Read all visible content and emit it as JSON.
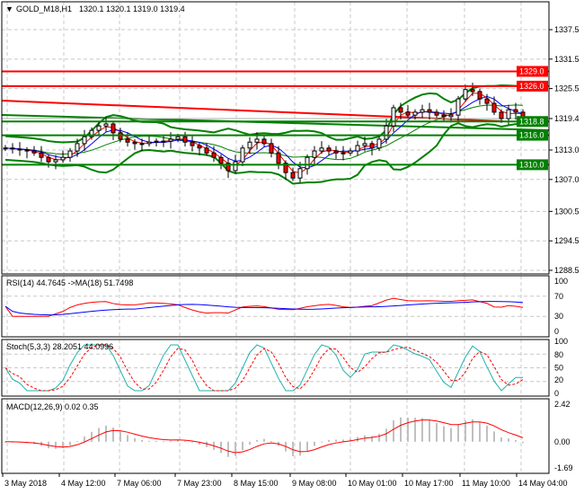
{
  "header": {
    "symbol": "GOLD_M18,H1",
    "ohlc": "1320.1 1320.1 1319.0 1319.4",
    "menu_icon": "triangle-down-icon"
  },
  "colors": {
    "bull": "#000000",
    "bear": "#ff0000",
    "support": "#008000",
    "resistance": "#ff0000",
    "rsi": "#ff0000",
    "rsi_ma": "#0000ff",
    "stoch_main": "#20b2aa",
    "stoch_signal": "#ff0000",
    "macd_hist": "#c0c0c0",
    "macd_signal": "#ff0000"
  },
  "chart_data": [
    {
      "type": "candlestick",
      "title": "GOLD_M18,H1",
      "ylim": [
        1285,
        1342
      ],
      "y_ticks": [
        "1337.5",
        "1331.5",
        "1325.5",
        "1319.4",
        "1313.0",
        "1307.0",
        "1300.5",
        "1294.5",
        "1288.5"
      ],
      "x_ticks": [
        "3 May 2018",
        "4 May 12:00",
        "7 May 06:00",
        "7 May 23:00",
        "8 May 15:00",
        "9 May 08:00",
        "10 May 01:00",
        "10 May 17:00",
        "11 May 10:00",
        "14 May 04:00"
      ],
      "closes": [
        1313.4,
        1313.2,
        1313.0,
        1312.8,
        1312.4,
        1311.5,
        1310.6,
        1311.0,
        1311.5,
        1312.8,
        1314.3,
        1315.7,
        1317.0,
        1317.9,
        1318.3,
        1316.5,
        1315.2,
        1314.6,
        1314.3,
        1314.3,
        1314.6,
        1314.8,
        1314.8,
        1315.2,
        1315.7,
        1314.6,
        1313.9,
        1313.4,
        1312.4,
        1311.5,
        1310.3,
        1308.8,
        1310.6,
        1313.4,
        1314.6,
        1315.2,
        1314.3,
        1312.4,
        1310.3,
        1308.4,
        1307.3,
        1309.2,
        1311.5,
        1312.8,
        1313.4,
        1312.8,
        1312.4,
        1312.4,
        1312.8,
        1313.9,
        1314.3,
        1313.4,
        1315.2,
        1317.9,
        1321.6,
        1320.7,
        1320.1,
        1320.7,
        1321.2,
        1320.7,
        1320.1,
        1319.8,
        1320.1,
        1323.4,
        1325.3,
        1324.9,
        1323.4,
        1322.5,
        1320.7,
        1319.4,
        1321.2,
        1320.7,
        1319.4
      ],
      "levels": [
        {
          "value": 1329.0,
          "label": "1329.0",
          "kind": "resistance"
        },
        {
          "value": 1326.0,
          "label": "1326.0",
          "kind": "resistance"
        },
        {
          "value": 1318.8,
          "label": "1318.8",
          "kind": "support"
        },
        {
          "value": 1316.0,
          "label": "1316.0",
          "kind": "support"
        },
        {
          "value": 1310.0,
          "label": "1310.0",
          "kind": "support"
        }
      ],
      "current_price": 1319.4
    },
    {
      "type": "line",
      "label": "RSI(14) 44.7645  ->MA(18) 51.7498",
      "ylim": [
        0,
        100
      ],
      "y_ticks": [
        "100",
        "70",
        "30",
        "0"
      ]
    },
    {
      "type": "line",
      "label": "Stoch(5,3,3) 28.2051 44.0996",
      "ylim": [
        0,
        100
      ],
      "y_ticks": [
        "100",
        "80",
        "50",
        "20",
        "0"
      ]
    },
    {
      "type": "bar",
      "label": "MACD(12,26,9) 0.02 0.35",
      "ylim": [
        -1.69,
        2.42
      ],
      "y_ticks": [
        "2.42",
        "0.00",
        "-1.69"
      ]
    }
  ]
}
